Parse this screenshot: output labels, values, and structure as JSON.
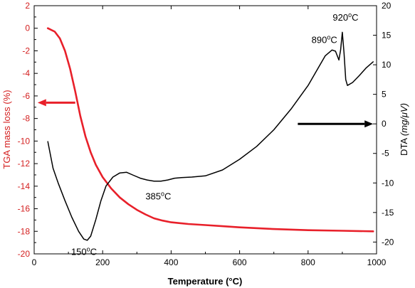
{
  "chart_data": {
    "type": "line",
    "title": "",
    "xlabel": "Temperature (°C)",
    "ylabel_left": "TGA mass loss (%)",
    "ylabel_right_prefix": "DTA ",
    "ylabel_right_unit": "(mg/μV)",
    "xlim": [
      0,
      1000
    ],
    "ylim_left": [
      -20,
      2
    ],
    "ylim_right": [
      -22,
      20
    ],
    "x_ticks": [
      0,
      200,
      400,
      600,
      800,
      1000
    ],
    "y_left_ticks": [
      2,
      0,
      -2,
      -4,
      -6,
      -8,
      -10,
      -12,
      -14,
      -16,
      -18,
      -20
    ],
    "y_right_ticks": [
      20,
      15,
      10,
      5,
      0,
      -5,
      -10,
      -15,
      -20
    ],
    "x_tick_labels": [
      "0",
      "200",
      "400",
      "600",
      "800",
      "1000"
    ],
    "y_left_tick_labels": [
      "2",
      "0",
      "-2",
      "-4",
      "-6",
      "-8",
      "-10",
      "-12",
      "-14",
      "-16",
      "-18",
      "-20"
    ],
    "y_right_tick_labels": [
      "20",
      "15",
      "10",
      "5",
      "0",
      "-5",
      "-10",
      "-15",
      "-20"
    ],
    "grid": false,
    "series": [
      {
        "axis": "left",
        "color": "#e8202a",
        "points": [
          [
            40,
            0.0
          ],
          [
            60,
            -0.3
          ],
          [
            75,
            -0.9
          ],
          [
            90,
            -2.0
          ],
          [
            105,
            -3.6
          ],
          [
            120,
            -5.6
          ],
          [
            135,
            -7.8
          ],
          [
            150,
            -9.6
          ],
          [
            165,
            -11.0
          ],
          [
            180,
            -12.1
          ],
          [
            200,
            -13.2
          ],
          [
            225,
            -14.2
          ],
          [
            250,
            -15.0
          ],
          [
            275,
            -15.6
          ],
          [
            300,
            -16.1
          ],
          [
            325,
            -16.5
          ],
          [
            350,
            -16.85
          ],
          [
            375,
            -17.05
          ],
          [
            400,
            -17.2
          ],
          [
            450,
            -17.35
          ],
          [
            500,
            -17.45
          ],
          [
            550,
            -17.55
          ],
          [
            600,
            -17.65
          ],
          [
            700,
            -17.8
          ],
          [
            800,
            -17.9
          ],
          [
            900,
            -17.95
          ],
          [
            990,
            -18.0
          ]
        ]
      },
      {
        "axis": "right",
        "color": "#000000",
        "points": [
          [
            40,
            -3.0
          ],
          [
            55,
            -7.5
          ],
          [
            70,
            -10.0
          ],
          [
            90,
            -13.0
          ],
          [
            110,
            -15.8
          ],
          [
            130,
            -18.2
          ],
          [
            145,
            -19.5
          ],
          [
            155,
            -19.7
          ],
          [
            165,
            -19.0
          ],
          [
            180,
            -16.2
          ],
          [
            195,
            -13.0
          ],
          [
            210,
            -10.5
          ],
          [
            230,
            -9.0
          ],
          [
            250,
            -8.3
          ],
          [
            270,
            -8.2
          ],
          [
            290,
            -8.7
          ],
          [
            310,
            -9.2
          ],
          [
            330,
            -9.5
          ],
          [
            350,
            -9.7
          ],
          [
            370,
            -9.7
          ],
          [
            390,
            -9.5
          ],
          [
            410,
            -9.2
          ],
          [
            430,
            -9.1
          ],
          [
            460,
            -9.0
          ],
          [
            500,
            -8.8
          ],
          [
            550,
            -7.8
          ],
          [
            600,
            -6.0
          ],
          [
            650,
            -3.8
          ],
          [
            700,
            -1.0
          ],
          [
            750,
            2.5
          ],
          [
            800,
            6.5
          ],
          [
            830,
            9.5
          ],
          [
            850,
            11.5
          ],
          [
            870,
            12.5
          ],
          [
            880,
            12.3
          ],
          [
            890,
            10.8
          ],
          [
            895,
            12.5
          ],
          [
            900,
            15.5
          ],
          [
            905,
            12.0
          ],
          [
            910,
            7.5
          ],
          [
            915,
            6.5
          ],
          [
            930,
            7.0
          ],
          [
            950,
            8.2
          ],
          [
            970,
            9.5
          ],
          [
            990,
            10.5
          ]
        ]
      }
    ],
    "annotations": [
      {
        "text": "150",
        "sup": "o",
        "suffix": "C",
        "x": 108,
        "y_right": -22.2
      },
      {
        "text": "385",
        "sup": "o",
        "suffix": "C",
        "x": 325,
        "y_right": -12.8
      },
      {
        "text": "890",
        "sup": "o",
        "suffix": "C",
        "x": 810,
        "y_right": 13.7
      },
      {
        "text": "920",
        "sup": "o",
        "suffix": "C",
        "x": 872,
        "y_right": 17.5
      }
    ],
    "arrows": [
      {
        "series": "left",
        "direction": "left",
        "x_from": 120,
        "x_to": 10,
        "y_left": -6.6,
        "color": "#e8202a"
      },
      {
        "series": "right",
        "direction": "right",
        "x_from": 770,
        "x_to": 990,
        "y_right": 0.0,
        "color": "#000000"
      }
    ]
  }
}
